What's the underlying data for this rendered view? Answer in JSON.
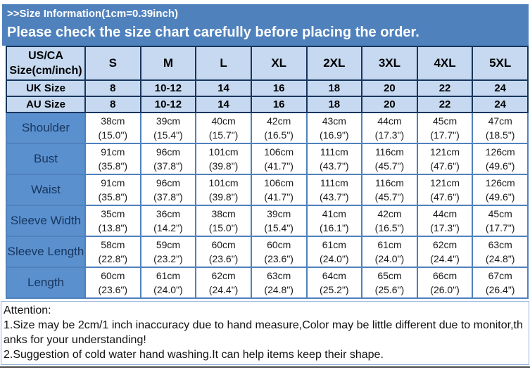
{
  "banner": {
    "title": ">>Size Information(1cm=0.39inch)",
    "subtitle": "Please check the size chart carefully before placing the order."
  },
  "size_table": {
    "corner_label": "US/CA Size(cm/inch)",
    "size_headers": [
      "S",
      "M",
      "L",
      "XL",
      "2XL",
      "3XL",
      "4XL",
      "5XL"
    ],
    "region_rows": [
      {
        "label": "UK Size",
        "values": [
          "8",
          "10-12",
          "14",
          "16",
          "18",
          "20",
          "22",
          "24"
        ]
      },
      {
        "label": "AU Size",
        "values": [
          "8",
          "10-12",
          "14",
          "16",
          "18",
          "20",
          "22",
          "24"
        ]
      }
    ],
    "measurement_rows": [
      {
        "label": "Shoulder",
        "cm": [
          "38cm",
          "39cm",
          "40cm",
          "42cm",
          "43cm",
          "44cm",
          "45cm",
          "47cm"
        ],
        "inch": [
          "(15.0\")",
          "(15.4\")",
          "(15.7\")",
          "(16.5\")",
          "(16.9\")",
          "(17.3\")",
          "(17.7\")",
          "(18.5\")"
        ]
      },
      {
        "label": "Bust",
        "cm": [
          "91cm",
          "96cm",
          "101cm",
          "106cm",
          "111cm",
          "116cm",
          "121cm",
          "126cm"
        ],
        "inch": [
          "(35.8\")",
          "(37.8\")",
          "(39.8\")",
          "(41.7\")",
          "(43.7\")",
          "(45.7\")",
          "(47.6\")",
          "(49.6\")"
        ]
      },
      {
        "label": "Waist",
        "cm": [
          "91cm",
          "96cm",
          "101cm",
          "106cm",
          "111cm",
          "116cm",
          "121cm",
          "126cm"
        ],
        "inch": [
          "(35.8\")",
          "(37.8\")",
          "(39.8\")",
          "(41.7\")",
          "(43.7\")",
          "(45.7\")",
          "(47.6\")",
          "(49.6\")"
        ]
      },
      {
        "label": "Sleeve Width",
        "cm": [
          "35cm",
          "36cm",
          "38cm",
          "39cm",
          "41cm",
          "42cm",
          "44cm",
          "45cm"
        ],
        "inch": [
          "(13.8\")",
          "(14.2\")",
          "(15.0\")",
          "(15.4\")",
          "(16.1\")",
          "(16.5\")",
          "(17.3\")",
          "(17.7\")"
        ]
      },
      {
        "label": "Sleeve Length",
        "cm": [
          "58cm",
          "59cm",
          "60cm",
          "60cm",
          "61cm",
          "61cm",
          "62cm",
          "63cm"
        ],
        "inch": [
          "(22.8\")",
          "(23.2\")",
          "(23.6\")",
          "(23.6\")",
          "(24.0\")",
          "(24.0\")",
          "(24.4\")",
          "(24.8\")"
        ]
      },
      {
        "label": "Length",
        "cm": [
          "60cm",
          "61cm",
          "62cm",
          "63cm",
          "64cm",
          "65cm",
          "66cm",
          "67cm"
        ],
        "inch": [
          "(23.6\")",
          "(24.0\")",
          "(24.4\")",
          "(24.8\")",
          "(25.2\")",
          "(25.6\")",
          "(26.0\")",
          "(26.4\")"
        ]
      }
    ]
  },
  "attention": {
    "title": "Attention:",
    "notes": [
      "1.Size may be 2cm/1 inch inaccuracy due to hand measure,Color may be little different due to monitor,thanks for your understanding!",
      "2.Suggestion of cold water hand washing.It can help items keep their shape."
    ]
  },
  "colors": {
    "banner_blue": "#4f81bd",
    "header_light_blue": "#c6d9f1",
    "label_column_blue": "#5b90cf",
    "header_border_navy": "#17365d",
    "grid_border_blue": "#4f81bd",
    "attention_border_blue": "#95b3d7",
    "bottom_divider_gray": "#4d4d4d"
  }
}
